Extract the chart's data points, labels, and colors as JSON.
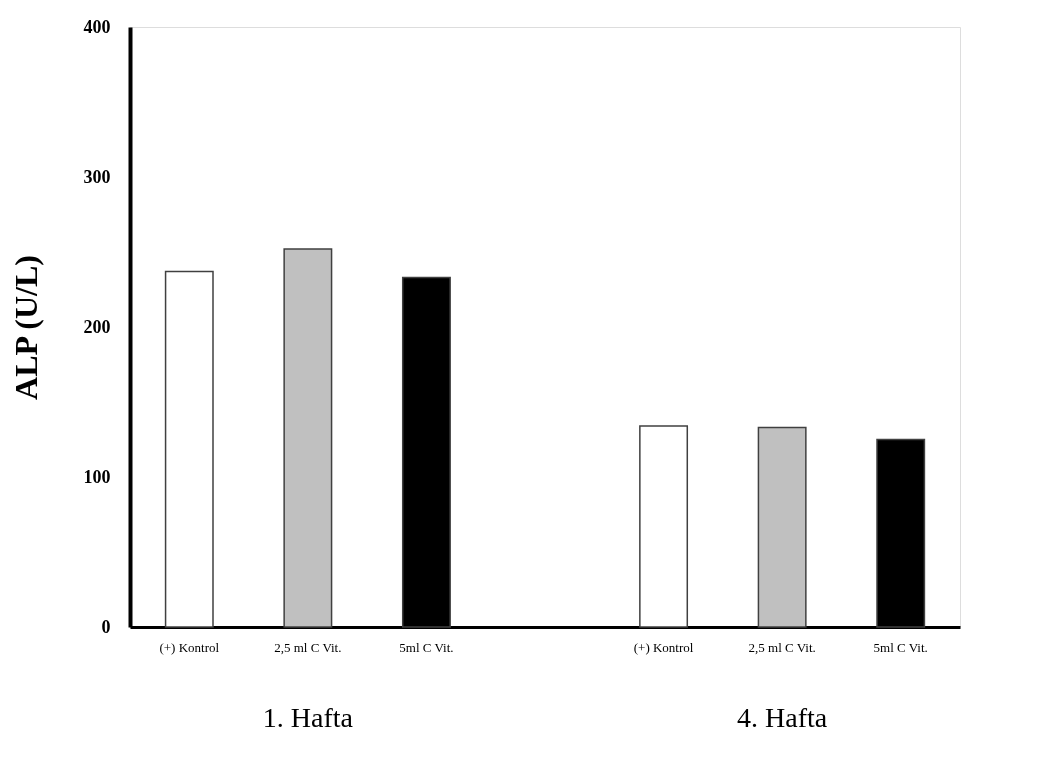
{
  "chart_data": {
    "type": "bar",
    "ylabel": "ALP (U/L)",
    "categories": [
      "(+) Kontrol",
      "2,5 ml C Vit.",
      "5ml C Vit.",
      null,
      "(+) Kontrol",
      "2,5 ml C Vit.",
      "5ml C Vit."
    ],
    "values": [
      237,
      252,
      233,
      null,
      134,
      133,
      125
    ],
    "colors": [
      "#ffffff",
      "#c0c0c0",
      "#000000",
      null,
      "#ffffff",
      "#c0c0c0",
      "#000000"
    ],
    "ylim": [
      0,
      400
    ],
    "yticks": [
      0,
      100,
      200,
      300,
      400
    ],
    "grid": false,
    "annotations": [
      "1. Hafta",
      "4. Hafta"
    ]
  }
}
